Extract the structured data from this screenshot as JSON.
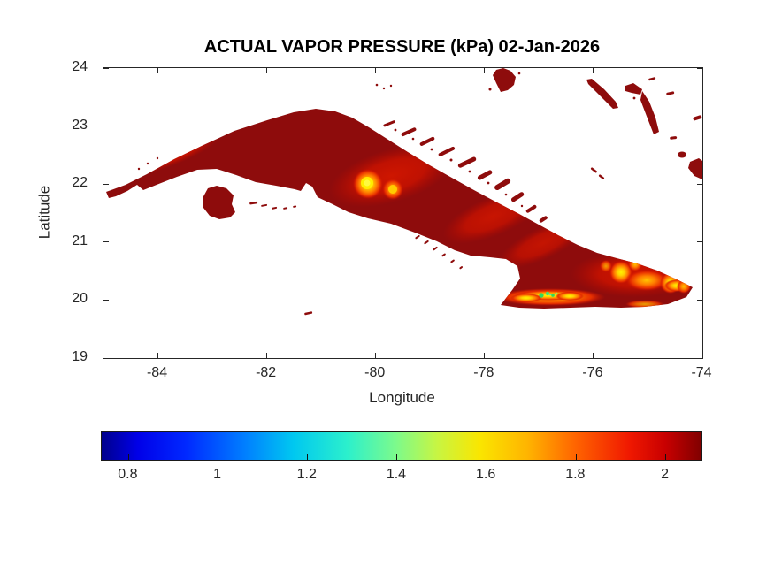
{
  "figure": {
    "background": "#ffffff",
    "kind": "MATLAB-style exported map figure"
  },
  "chart_data": {
    "type": "heatmap",
    "title": "ACTUAL VAPOR PRESSURE (kPa) 02-Jan-2026",
    "xlabel": "Longitude",
    "ylabel": "Latitude",
    "xlim": [
      -85,
      -74
    ],
    "ylim": [
      19,
      24
    ],
    "xticks": [
      -84,
      -82,
      -80,
      -78,
      -76,
      -74
    ],
    "xtick_labels": [
      "-84",
      "-82",
      "-80",
      "-78",
      "-76",
      "-74"
    ],
    "yticks": [
      24,
      23,
      22,
      21,
      20,
      19
    ],
    "ytick_labels": [
      "24",
      "23",
      "22",
      "21",
      "20",
      "19"
    ],
    "grid": false,
    "legend": "none",
    "colorbar": {
      "orientation": "horizontal",
      "position": "below plot",
      "colormap": "jet",
      "range": [
        0.74,
        2.08
      ],
      "ticks": [
        0.8,
        1,
        1.2,
        1.4,
        1.6,
        1.8,
        2
      ],
      "tick_labels": [
        "0.8",
        "1",
        "1.2",
        "1.4",
        "1.6",
        "1.8",
        "2"
      ]
    },
    "map": {
      "region": "Cuba and nearby islands (Isla de la Juventud, north-coast cays, Bahamas fragments, Cayman dash)",
      "ocean": "white / no data",
      "features": [
        {
          "name": "Cuba lowlands (most of island)",
          "approx_kPa": 2.0
        },
        {
          "name": "Western ridge (Sierra del Rosario / Los Organos)",
          "approx_kPa": 1.7
        },
        {
          "name": "Escambray mountains near (-80.1, 21.95)",
          "approx_kPa": 1.5
        },
        {
          "name": "Camaguey interior band",
          "approx_kPa": 1.9
        },
        {
          "name": "Sierra Maestra crest near (-76.8, 20.0)",
          "approx_kPa": 1.25
        },
        {
          "name": "Sagua-Baracoa massif near (-75.0, 20.4)",
          "approx_kPa": 1.5
        },
        {
          "name": "Isla de la Juventud",
          "approx_kPa": 2.0
        },
        {
          "name": "Ocean",
          "approx_kPa": null
        }
      ]
    },
    "colors": {
      "land_base": "#8E0C0C",
      "warm_red_patch": "#CE1600",
      "hotspot_orange": "#FF8C00",
      "hotspot_yellow": "#FFE800",
      "hotspot_green": "#2FD95F",
      "hotspot_cyan": "#40E0D0",
      "axis_text": "#262626",
      "title_text": "#000000"
    }
  }
}
